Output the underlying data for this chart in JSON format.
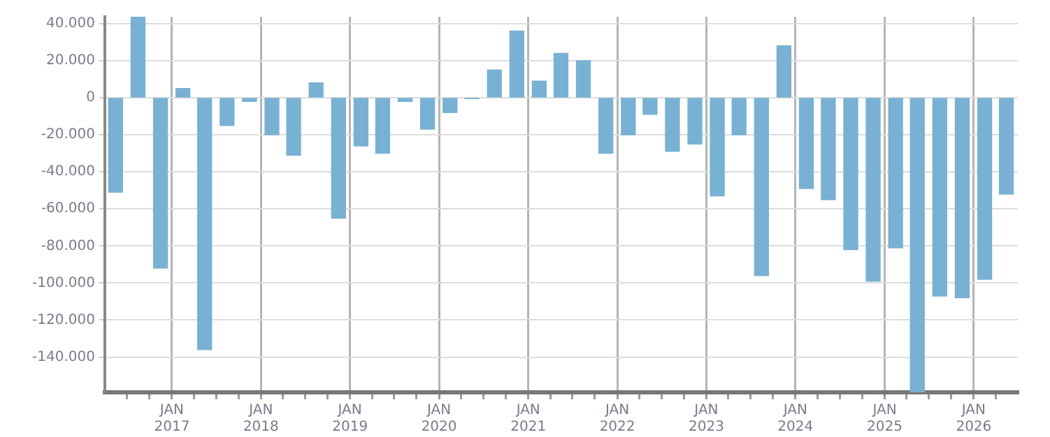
{
  "chart_data": {
    "type": "bar",
    "color": "#78b1d3",
    "x": [
      "2016-05-15",
      "2016-08-15",
      "2016-11-15",
      "2017-02-15",
      "2017-05-15",
      "2017-08-15",
      "2017-11-15",
      "2018-02-15",
      "2018-05-15",
      "2018-08-15",
      "2018-11-15",
      "2019-02-15",
      "2019-05-15",
      "2019-08-15",
      "2019-11-15",
      "2020-02-15",
      "2020-05-15",
      "2020-08-15",
      "2020-11-15",
      "2021-02-15",
      "2021-05-15",
      "2021-08-15",
      "2021-11-15",
      "2022-02-15",
      "2022-05-15",
      "2022-08-15",
      "2022-11-15",
      "2023-02-15",
      "2023-05-15",
      "2023-08-15",
      "2023-11-15",
      "2024-02-15",
      "2024-05-15",
      "2024-08-15",
      "2024-11-15",
      "2025-02-15",
      "2025-05-15",
      "2025-08-15",
      "2025-11-15",
      "2026-02-15",
      "2026-05-15"
    ],
    "values": [
      -51000,
      43700,
      -92000,
      5000,
      -136000,
      -15000,
      -2000,
      -20000,
      -31000,
      8000,
      -65000,
      -26000,
      -30000,
      -2000,
      -17000,
      -8000,
      -500,
      15000,
      36000,
      9000,
      24000,
      20000,
      -30000,
      -20000,
      -9000,
      -29000,
      -25000,
      -53000,
      -20000,
      -96000,
      28000,
      -49000,
      -55000,
      -82000,
      -99000,
      -81000,
      -159000,
      -107000,
      -108000,
      -98000,
      -52000
    ],
    "xlim": [
      "2016-04-01",
      "2026-07-01"
    ],
    "xticks": [
      {
        "value": "2016-07-01",
        "label": null
      },
      {
        "value": "2016-10-01",
        "label": null
      },
      {
        "value": "2017-01-01",
        "label": "JAN 2017"
      },
      {
        "value": "2017-04-01",
        "label": null
      },
      {
        "value": "2017-07-01",
        "label": null
      },
      {
        "value": "2017-10-01",
        "label": null
      },
      {
        "value": "2018-01-01",
        "label": "JAN 2018"
      },
      {
        "value": "2018-04-01",
        "label": null
      },
      {
        "value": "2018-07-01",
        "label": null
      },
      {
        "value": "2018-10-01",
        "label": null
      },
      {
        "value": "2019-01-01",
        "label": "JAN 2019"
      },
      {
        "value": "2019-04-01",
        "label": null
      },
      {
        "value": "2019-07-01",
        "label": null
      },
      {
        "value": "2019-10-01",
        "label": null
      },
      {
        "value": "2020-01-01",
        "label": "JAN 2020"
      },
      {
        "value": "2020-04-01",
        "label": null
      },
      {
        "value": "2020-07-01",
        "label": null
      },
      {
        "value": "2020-10-01",
        "label": null
      },
      {
        "value": "2021-01-01",
        "label": "JAN 2021"
      },
      {
        "value": "2021-04-01",
        "label": null
      },
      {
        "value": "2021-07-01",
        "label": null
      },
      {
        "value": "2021-10-01",
        "label": null
      },
      {
        "value": "2022-01-01",
        "label": "JAN 2022"
      },
      {
        "value": "2022-04-01",
        "label": null
      },
      {
        "value": "2022-07-01",
        "label": null
      },
      {
        "value": "2022-10-01",
        "label": null
      },
      {
        "value": "2023-01-01",
        "label": "JAN 2023"
      },
      {
        "value": "2023-04-01",
        "label": null
      },
      {
        "value": "2023-07-01",
        "label": null
      },
      {
        "value": "2023-10-01",
        "label": null
      },
      {
        "value": "2024-01-01",
        "label": "JAN 2024"
      },
      {
        "value": "2024-04-01",
        "label": null
      },
      {
        "value": "2024-07-01",
        "label": null
      },
      {
        "value": "2024-10-01",
        "label": null
      },
      {
        "value": "2025-01-01",
        "label": "JAN 2025"
      },
      {
        "value": "2025-04-01",
        "label": null
      },
      {
        "value": "2025-07-01",
        "label": null
      },
      {
        "value": "2025-10-01",
        "label": null
      },
      {
        "value": "2026-01-01",
        "label": "JAN 2026"
      },
      {
        "value": "2026-04-01",
        "label": null
      }
    ],
    "ylim": [
      -159000,
      43700
    ],
    "yticks": [
      {
        "value": -140000,
        "label": "-140.000"
      },
      {
        "value": -120000,
        "label": "-120.000"
      },
      {
        "value": -100000,
        "label": "-100.000"
      },
      {
        "value": -80000,
        "label": "-80.000"
      },
      {
        "value": -60000,
        "label": "-60.000"
      },
      {
        "value": -40000,
        "label": "-40.000"
      },
      {
        "value": -20000,
        "label": "-20.000"
      },
      {
        "value": 0,
        "label": "0"
      },
      {
        "value": 20000,
        "label": "20.000"
      },
      {
        "value": 40000,
        "label": "40.000"
      }
    ],
    "grid": true,
    "legend": false
  }
}
